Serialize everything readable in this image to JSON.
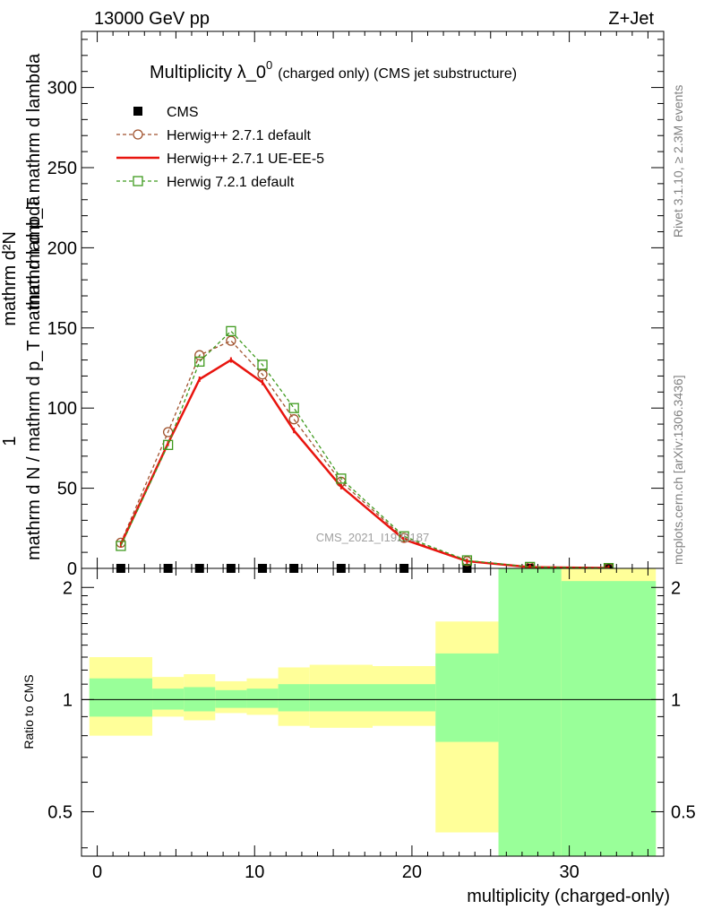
{
  "header": {
    "left": "13000 GeV pp",
    "right": "Z+Jet"
  },
  "side": {
    "rivet": "Rivet 3.1.10, ≥ 2.3M events",
    "mcplots": "mcplots.cern.ch [arXiv:1306.3436]"
  },
  "watermark": "CMS_2021_I1920187",
  "chart_data": [
    {
      "type": "line",
      "title": "Multiplicity λ_0",
      "title_superscript": "0",
      "subtitle": "(charged only) (CMS jet substructure)",
      "ylabel_top": "1",
      "ylabel_bottom": "mathrm d N / mathrm d p_T mathrm d lambda",
      "ylabel_numerator": "mathrm d²N",
      "ylabel_denominator": "mathrm d p_T mathrm d lambda",
      "ylim": [
        0,
        335
      ],
      "xlim": [
        -1,
        36
      ],
      "yticks": [
        0,
        50,
        100,
        150,
        200,
        250,
        300
      ],
      "legend_position": "top-left",
      "x": [
        1.5,
        4.5,
        6.5,
        8.5,
        10.5,
        12.5,
        15.5,
        19.5,
        23.5,
        27.5,
        32.5
      ],
      "series": [
        {
          "name": "CMS",
          "color": "#000000",
          "marker": "square",
          "values": [
            0,
            0,
            0,
            0,
            0,
            0,
            0,
            0,
            0,
            0,
            0
          ]
        },
        {
          "name": "Herwig++ 2.7.1 default",
          "color": "#a0522d",
          "marker": "circle",
          "dashed": true,
          "values": [
            16,
            85,
            133,
            142,
            121,
            93,
            54,
            19,
            4.5,
            0.8,
            0.2
          ]
        },
        {
          "name": "Herwig++ 2.7.1 UE-EE-5",
          "color": "#e8140e",
          "marker": "none",
          "dashed": false,
          "values": [
            15,
            78,
            118,
            130,
            116,
            86,
            51,
            18,
            4.5,
            0.8,
            0.2
          ]
        },
        {
          "name": "Herwig 7.2.1 default",
          "color": "#3f9a1e",
          "marker": "square-open",
          "dashed": true,
          "values": [
            14,
            77,
            129,
            148,
            127,
            100,
            56,
            20,
            5,
            0.9,
            0.2
          ]
        }
      ]
    },
    {
      "type": "area",
      "ylabel": "Ratio to CMS",
      "xlabel": "multiplicity (charged-only)",
      "xlim": [
        -1,
        36
      ],
      "ylim": [
        0.38,
        2.25
      ],
      "scale": "log",
      "yticks": [
        0.5,
        1,
        2
      ],
      "xticks": [
        0,
        10,
        20,
        30
      ],
      "bins": [
        {
          "lo": -0.5,
          "hi": 3.5,
          "green": [
            0.9,
            1.14
          ],
          "yellow": [
            0.8,
            1.3
          ]
        },
        {
          "lo": 3.5,
          "hi": 5.5,
          "green": [
            0.94,
            1.07
          ],
          "yellow": [
            0.9,
            1.15
          ]
        },
        {
          "lo": 5.5,
          "hi": 7.5,
          "green": [
            0.93,
            1.08
          ],
          "yellow": [
            0.88,
            1.17
          ]
        },
        {
          "lo": 7.5,
          "hi": 9.5,
          "green": [
            0.95,
            1.06
          ],
          "yellow": [
            0.92,
            1.12
          ]
        },
        {
          "lo": 9.5,
          "hi": 11.5,
          "green": [
            0.95,
            1.07
          ],
          "yellow": [
            0.91,
            1.14
          ]
        },
        {
          "lo": 11.5,
          "hi": 13.5,
          "green": [
            0.93,
            1.1
          ],
          "yellow": [
            0.85,
            1.22
          ]
        },
        {
          "lo": 13.5,
          "hi": 17.5,
          "green": [
            0.93,
            1.1
          ],
          "yellow": [
            0.84,
            1.24
          ]
        },
        {
          "lo": 17.5,
          "hi": 21.5,
          "green": [
            0.93,
            1.1
          ],
          "yellow": [
            0.85,
            1.23
          ]
        },
        {
          "lo": 21.5,
          "hi": 25.5,
          "green": [
            0.77,
            1.33
          ],
          "yellow": [
            0.44,
            1.62
          ]
        },
        {
          "lo": 25.5,
          "hi": 29.5,
          "green": [
            0.38,
            2.25
          ],
          "yellow": [
            0.38,
            2.25
          ]
        },
        {
          "lo": 29.5,
          "hi": 35.5,
          "green": [
            0.38,
            2.08
          ],
          "yellow": [
            0.38,
            2.25
          ]
        }
      ],
      "reference_line": 1
    }
  ]
}
